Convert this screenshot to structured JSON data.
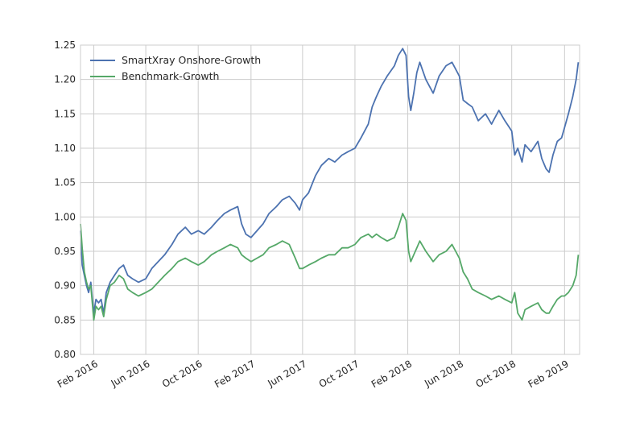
{
  "chart_data": {
    "type": "line",
    "title": "",
    "xlabel": "",
    "ylabel": "",
    "ylim": [
      0.8,
      1.25
    ],
    "xlim": [
      "2016-01-01",
      "2019-03-08"
    ],
    "grid": true,
    "legend_position": "top-left",
    "y_ticks": [
      "0.80",
      "0.85",
      "0.90",
      "0.95",
      "1.00",
      "1.05",
      "1.10",
      "1.15",
      "1.20",
      "1.25"
    ],
    "x_ticks": [
      {
        "date": "2016-02-01",
        "label": "Feb 2016"
      },
      {
        "date": "2016-06-01",
        "label": "Jun 2016"
      },
      {
        "date": "2016-10-01",
        "label": "Oct 2016"
      },
      {
        "date": "2017-02-01",
        "label": "Feb 2017"
      },
      {
        "date": "2017-06-01",
        "label": "Jun 2017"
      },
      {
        "date": "2017-10-01",
        "label": "Oct 2017"
      },
      {
        "date": "2018-02-01",
        "label": "Feb 2018"
      },
      {
        "date": "2018-06-01",
        "label": "Jun 2018"
      },
      {
        "date": "2018-10-01",
        "label": "Oct 2018"
      },
      {
        "date": "2019-02-01",
        "label": "Feb 2019"
      }
    ],
    "series": [
      {
        "name": "SmartXray Onshore-Growth",
        "color": "#4c72b0",
        "points": [
          [
            "2016-01-01",
            0.98
          ],
          [
            "2016-01-05",
            0.93
          ],
          [
            "2016-01-10",
            0.915
          ],
          [
            "2016-01-15",
            0.9
          ],
          [
            "2016-01-20",
            0.89
          ],
          [
            "2016-01-25",
            0.905
          ],
          [
            "2016-02-01",
            0.86
          ],
          [
            "2016-02-06",
            0.88
          ],
          [
            "2016-02-12",
            0.875
          ],
          [
            "2016-02-18",
            0.88
          ],
          [
            "2016-02-24",
            0.86
          ],
          [
            "2016-03-01",
            0.89
          ],
          [
            "2016-03-10",
            0.905
          ],
          [
            "2016-03-20",
            0.915
          ],
          [
            "2016-03-31",
            0.925
          ],
          [
            "2016-04-10",
            0.93
          ],
          [
            "2016-04-20",
            0.915
          ],
          [
            "2016-05-01",
            0.91
          ],
          [
            "2016-05-15",
            0.905
          ],
          [
            "2016-06-01",
            0.91
          ],
          [
            "2016-06-15",
            0.925
          ],
          [
            "2016-06-30",
            0.935
          ],
          [
            "2016-07-15",
            0.945
          ],
          [
            "2016-08-01",
            0.96
          ],
          [
            "2016-08-15",
            0.975
          ],
          [
            "2016-09-01",
            0.985
          ],
          [
            "2016-09-15",
            0.975
          ],
          [
            "2016-10-01",
            0.98
          ],
          [
            "2016-10-15",
            0.975
          ],
          [
            "2016-11-01",
            0.985
          ],
          [
            "2016-11-15",
            0.995
          ],
          [
            "2016-12-01",
            1.005
          ],
          [
            "2016-12-15",
            1.01
          ],
          [
            "2017-01-01",
            1.015
          ],
          [
            "2017-01-10",
            0.99
          ],
          [
            "2017-01-20",
            0.975
          ],
          [
            "2017-02-01",
            0.97
          ],
          [
            "2017-02-15",
            0.98
          ],
          [
            "2017-03-01",
            0.99
          ],
          [
            "2017-03-15",
            1.005
          ],
          [
            "2017-04-01",
            1.015
          ],
          [
            "2017-04-15",
            1.025
          ],
          [
            "2017-05-01",
            1.03
          ],
          [
            "2017-05-15",
            1.02
          ],
          [
            "2017-05-25",
            1.01
          ],
          [
            "2017-06-01",
            1.025
          ],
          [
            "2017-06-15",
            1.035
          ],
          [
            "2017-07-01",
            1.06
          ],
          [
            "2017-07-15",
            1.075
          ],
          [
            "2017-08-01",
            1.085
          ],
          [
            "2017-08-15",
            1.08
          ],
          [
            "2017-09-01",
            1.09
          ],
          [
            "2017-09-15",
            1.095
          ],
          [
            "2017-10-01",
            1.1
          ],
          [
            "2017-10-15",
            1.115
          ],
          [
            "2017-11-01",
            1.135
          ],
          [
            "2017-11-10",
            1.16
          ],
          [
            "2017-11-20",
            1.175
          ],
          [
            "2017-12-01",
            1.19
          ],
          [
            "2017-12-15",
            1.205
          ],
          [
            "2018-01-01",
            1.22
          ],
          [
            "2018-01-10",
            1.235
          ],
          [
            "2018-01-20",
            1.245
          ],
          [
            "2018-01-28",
            1.235
          ],
          [
            "2018-02-03",
            1.175
          ],
          [
            "2018-02-08",
            1.155
          ],
          [
            "2018-02-15",
            1.18
          ],
          [
            "2018-02-22",
            1.21
          ],
          [
            "2018-03-01",
            1.225
          ],
          [
            "2018-03-15",
            1.2
          ],
          [
            "2018-04-01",
            1.18
          ],
          [
            "2018-04-15",
            1.205
          ],
          [
            "2018-05-01",
            1.22
          ],
          [
            "2018-05-15",
            1.225
          ],
          [
            "2018-06-01",
            1.205
          ],
          [
            "2018-06-10",
            1.17
          ],
          [
            "2018-06-20",
            1.165
          ],
          [
            "2018-07-01",
            1.16
          ],
          [
            "2018-07-15",
            1.14
          ],
          [
            "2018-08-01",
            1.15
          ],
          [
            "2018-08-15",
            1.135
          ],
          [
            "2018-09-01",
            1.155
          ],
          [
            "2018-09-15",
            1.14
          ],
          [
            "2018-10-01",
            1.125
          ],
          [
            "2018-10-08",
            1.09
          ],
          [
            "2018-10-15",
            1.1
          ],
          [
            "2018-10-25",
            1.08
          ],
          [
            "2018-11-01",
            1.105
          ],
          [
            "2018-11-15",
            1.095
          ],
          [
            "2018-12-01",
            1.11
          ],
          [
            "2018-12-10",
            1.085
          ],
          [
            "2018-12-20",
            1.07
          ],
          [
            "2018-12-27",
            1.065
          ],
          [
            "2019-01-05",
            1.09
          ],
          [
            "2019-01-15",
            1.11
          ],
          [
            "2019-01-25",
            1.115
          ],
          [
            "2019-02-01",
            1.13
          ],
          [
            "2019-02-10",
            1.15
          ],
          [
            "2019-02-20",
            1.175
          ],
          [
            "2019-02-28",
            1.2
          ],
          [
            "2019-03-05",
            1.225
          ]
        ]
      },
      {
        "name": "Benchmark-Growth",
        "color": "#55a868",
        "points": [
          [
            "2016-01-01",
            0.99
          ],
          [
            "2016-01-05",
            0.955
          ],
          [
            "2016-01-10",
            0.92
          ],
          [
            "2016-01-15",
            0.905
          ],
          [
            "2016-01-20",
            0.895
          ],
          [
            "2016-01-25",
            0.9
          ],
          [
            "2016-02-01",
            0.85
          ],
          [
            "2016-02-06",
            0.87
          ],
          [
            "2016-02-12",
            0.865
          ],
          [
            "2016-02-18",
            0.87
          ],
          [
            "2016-02-24",
            0.855
          ],
          [
            "2016-03-01",
            0.88
          ],
          [
            "2016-03-10",
            0.9
          ],
          [
            "2016-03-20",
            0.905
          ],
          [
            "2016-03-31",
            0.915
          ],
          [
            "2016-04-10",
            0.91
          ],
          [
            "2016-04-20",
            0.895
          ],
          [
            "2016-05-01",
            0.89
          ],
          [
            "2016-05-15",
            0.885
          ],
          [
            "2016-06-01",
            0.89
          ],
          [
            "2016-06-15",
            0.895
          ],
          [
            "2016-06-30",
            0.905
          ],
          [
            "2016-07-15",
            0.915
          ],
          [
            "2016-08-01",
            0.925
          ],
          [
            "2016-08-15",
            0.935
          ],
          [
            "2016-09-01",
            0.94
          ],
          [
            "2016-09-15",
            0.935
          ],
          [
            "2016-10-01",
            0.93
          ],
          [
            "2016-10-15",
            0.935
          ],
          [
            "2016-11-01",
            0.945
          ],
          [
            "2016-11-15",
            0.95
          ],
          [
            "2016-12-01",
            0.955
          ],
          [
            "2016-12-15",
            0.96
          ],
          [
            "2017-01-01",
            0.955
          ],
          [
            "2017-01-10",
            0.945
          ],
          [
            "2017-01-20",
            0.94
          ],
          [
            "2017-02-01",
            0.935
          ],
          [
            "2017-02-15",
            0.94
          ],
          [
            "2017-03-01",
            0.945
          ],
          [
            "2017-03-15",
            0.955
          ],
          [
            "2017-04-01",
            0.96
          ],
          [
            "2017-04-15",
            0.965
          ],
          [
            "2017-05-01",
            0.96
          ],
          [
            "2017-05-15",
            0.94
          ],
          [
            "2017-05-25",
            0.925
          ],
          [
            "2017-06-01",
            0.925
          ],
          [
            "2017-06-15",
            0.93
          ],
          [
            "2017-07-01",
            0.935
          ],
          [
            "2017-07-15",
            0.94
          ],
          [
            "2017-08-01",
            0.945
          ],
          [
            "2017-08-15",
            0.945
          ],
          [
            "2017-09-01",
            0.955
          ],
          [
            "2017-09-15",
            0.955
          ],
          [
            "2017-10-01",
            0.96
          ],
          [
            "2017-10-15",
            0.97
          ],
          [
            "2017-11-01",
            0.975
          ],
          [
            "2017-11-10",
            0.97
          ],
          [
            "2017-11-20",
            0.975
          ],
          [
            "2017-12-01",
            0.97
          ],
          [
            "2017-12-15",
            0.965
          ],
          [
            "2018-01-01",
            0.97
          ],
          [
            "2018-01-10",
            0.985
          ],
          [
            "2018-01-20",
            1.005
          ],
          [
            "2018-01-28",
            0.995
          ],
          [
            "2018-02-03",
            0.95
          ],
          [
            "2018-02-08",
            0.935
          ],
          [
            "2018-02-15",
            0.945
          ],
          [
            "2018-02-22",
            0.955
          ],
          [
            "2018-03-01",
            0.965
          ],
          [
            "2018-03-15",
            0.95
          ],
          [
            "2018-04-01",
            0.935
          ],
          [
            "2018-04-15",
            0.945
          ],
          [
            "2018-05-01",
            0.95
          ],
          [
            "2018-05-15",
            0.96
          ],
          [
            "2018-06-01",
            0.94
          ],
          [
            "2018-06-10",
            0.92
          ],
          [
            "2018-06-20",
            0.91
          ],
          [
            "2018-07-01",
            0.895
          ],
          [
            "2018-07-15",
            0.89
          ],
          [
            "2018-08-01",
            0.885
          ],
          [
            "2018-08-15",
            0.88
          ],
          [
            "2018-09-01",
            0.885
          ],
          [
            "2018-09-15",
            0.88
          ],
          [
            "2018-10-01",
            0.875
          ],
          [
            "2018-10-08",
            0.89
          ],
          [
            "2018-10-15",
            0.86
          ],
          [
            "2018-10-25",
            0.85
          ],
          [
            "2018-11-01",
            0.865
          ],
          [
            "2018-11-15",
            0.87
          ],
          [
            "2018-12-01",
            0.875
          ],
          [
            "2018-12-10",
            0.865
          ],
          [
            "2018-12-20",
            0.86
          ],
          [
            "2018-12-27",
            0.86
          ],
          [
            "2019-01-05",
            0.87
          ],
          [
            "2019-01-15",
            0.88
          ],
          [
            "2019-01-25",
            0.885
          ],
          [
            "2019-02-01",
            0.885
          ],
          [
            "2019-02-10",
            0.89
          ],
          [
            "2019-02-20",
            0.9
          ],
          [
            "2019-02-28",
            0.915
          ],
          [
            "2019-03-05",
            0.945
          ]
        ]
      }
    ]
  }
}
